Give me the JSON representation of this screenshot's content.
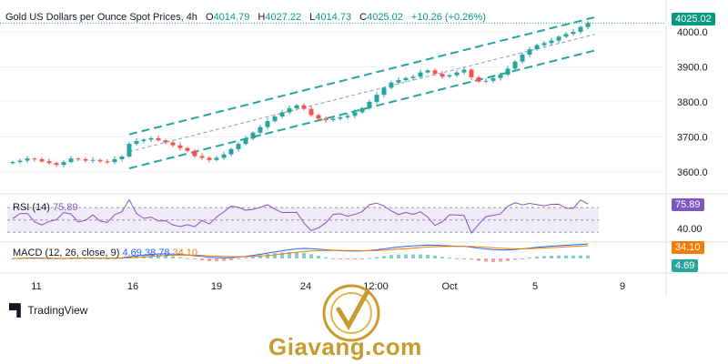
{
  "header": {
    "symbol": "Gold US Dollars per Ounce Spot Prices, 4h",
    "open_key": "O",
    "open": "4014.79",
    "high_key": "H",
    "high": "4027.22",
    "low_key": "L",
    "low": "4014.73",
    "close_key": "C",
    "close": "4025.02",
    "change": "+10.26 (+0.26%)"
  },
  "price_badge": "4025.02",
  "rsi": {
    "label": "RSI (14)",
    "value": "75.89",
    "badge": "75.89",
    "axis_label": "40.00"
  },
  "macd": {
    "label": "MACD (12, 26, close, 9)",
    "hist": "4.69",
    "macd": "38.78",
    "signal": "34.10",
    "badge_signal": "34.10",
    "badge_hist": "4.69"
  },
  "footer": {
    "tradingview": "TradingView",
    "watermark": "Giavang.com"
  },
  "colors": {
    "up": "#26a69a",
    "down": "#ef5350",
    "channel": "#26a69a",
    "rsi": "#7e57c2",
    "macd": "#2962ff",
    "signal": "#f57c00",
    "grid": "#f0f3fa"
  },
  "chart_data": [
    {
      "type": "candlestick",
      "title": "Gold US Dollars per Ounce Spot Prices, 4h",
      "x_ticks": [
        "11",
        "16",
        "19",
        "24",
        "12:00",
        "Oct",
        "5",
        "9"
      ],
      "y_ticks": [
        3600,
        3700,
        3800,
        3900,
        4000
      ],
      "ylim": [
        3545,
        4065
      ],
      "last_price": 4025.02,
      "price_path": [
        3628,
        3632,
        3638,
        3636,
        3630,
        3625,
        3620,
        3628,
        3638,
        3636,
        3632,
        3634,
        3630,
        3628,
        3636,
        3644,
        3680,
        3688,
        3692,
        3696,
        3690,
        3684,
        3676,
        3668,
        3660,
        3645,
        3640,
        3634,
        3640,
        3650,
        3665,
        3680,
        3695,
        3712,
        3728,
        3745,
        3758,
        3770,
        3782,
        3790,
        3780,
        3762,
        3752,
        3748,
        3752,
        3756,
        3760,
        3770,
        3782,
        3800,
        3820,
        3840,
        3855,
        3862,
        3868,
        3872,
        3884,
        3890,
        3880,
        3872,
        3876,
        3884,
        3892,
        3870,
        3858,
        3860,
        3868,
        3878,
        3895,
        3915,
        3935,
        3950,
        3962,
        3968,
        3975,
        3986,
        3994,
        4000,
        4014,
        4025
      ],
      "channel": {
        "upper": [
          [
            16,
            3707
          ],
          [
            80,
            4042
          ]
        ],
        "middle": [
          [
            16,
            3658
          ],
          [
            80,
            3993
          ]
        ],
        "lower": [
          [
            16,
            3610
          ],
          [
            80,
            3947
          ]
        ]
      }
    },
    {
      "type": "line",
      "name": "RSI (14)",
      "ylim": [
        20,
        85
      ],
      "bands": [
        30,
        50,
        70
      ],
      "axis_label": "40.00",
      "last_value": 75.89
    },
    {
      "type": "macd",
      "name": "MACD (12, 26, close, 9)",
      "last_hist": 4.69,
      "last_macd": 38.78,
      "last_signal": 34.1
    }
  ]
}
